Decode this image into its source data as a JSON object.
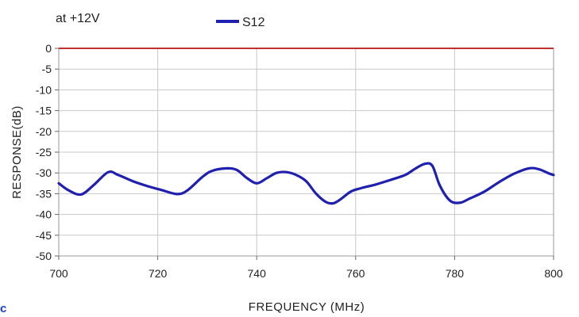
{
  "annotation": "at +12V",
  "stray_glyph": "c",
  "colors": {
    "series": "#1f1fb0",
    "zero_line": "#c03030",
    "grid": "#c8c8c8"
  },
  "chart_data": {
    "type": "line",
    "title": "",
    "xlabel": "FREQUENCY (MHz)",
    "ylabel": "RESPONSE(dB)",
    "xlim": [
      700,
      800
    ],
    "ylim": [
      -50,
      0
    ],
    "xticks": [
      700,
      720,
      740,
      760,
      780,
      800
    ],
    "yticks": [
      0,
      -5,
      -10,
      -15,
      -20,
      -25,
      -30,
      -35,
      -40,
      -45,
      -50
    ],
    "xtick_labels": [
      "700",
      "720",
      "740",
      "760",
      "780",
      "800"
    ],
    "ytick_labels": [
      "0",
      "-5",
      "-10",
      "-15",
      "-20",
      "-25",
      "-30",
      "-35",
      "-40",
      "-45",
      "-50"
    ],
    "grid": true,
    "legend": {
      "position": "top-center"
    },
    "reference_line": {
      "y": 0
    },
    "series": [
      {
        "name": "S12",
        "x": [
          700,
          702,
          704.5,
          707,
          710,
          712,
          715,
          718,
          721,
          724,
          726,
          729,
          731,
          734,
          736,
          738,
          740,
          742,
          744,
          746,
          748,
          750,
          752,
          754,
          755.5,
          757,
          759,
          761,
          764,
          767,
          770,
          772,
          774,
          775.5,
          777,
          779,
          781,
          783,
          786,
          789,
          792,
          795,
          797,
          799,
          800
        ],
        "y": [
          -32.5,
          -34.2,
          -35.2,
          -33,
          -29.8,
          -30.5,
          -32,
          -33.2,
          -34.2,
          -35.1,
          -34.2,
          -31,
          -29.5,
          -28.9,
          -29.3,
          -31.2,
          -32.5,
          -31.3,
          -30,
          -29.8,
          -30.5,
          -32,
          -35,
          -37,
          -37.3,
          -36.3,
          -34.5,
          -33.7,
          -32.8,
          -31.7,
          -30.5,
          -29,
          -27.8,
          -28.3,
          -33,
          -36.6,
          -37.2,
          -36.2,
          -34.5,
          -32.2,
          -30.2,
          -28.9,
          -29.1,
          -30.1,
          -30.5
        ]
      }
    ]
  }
}
